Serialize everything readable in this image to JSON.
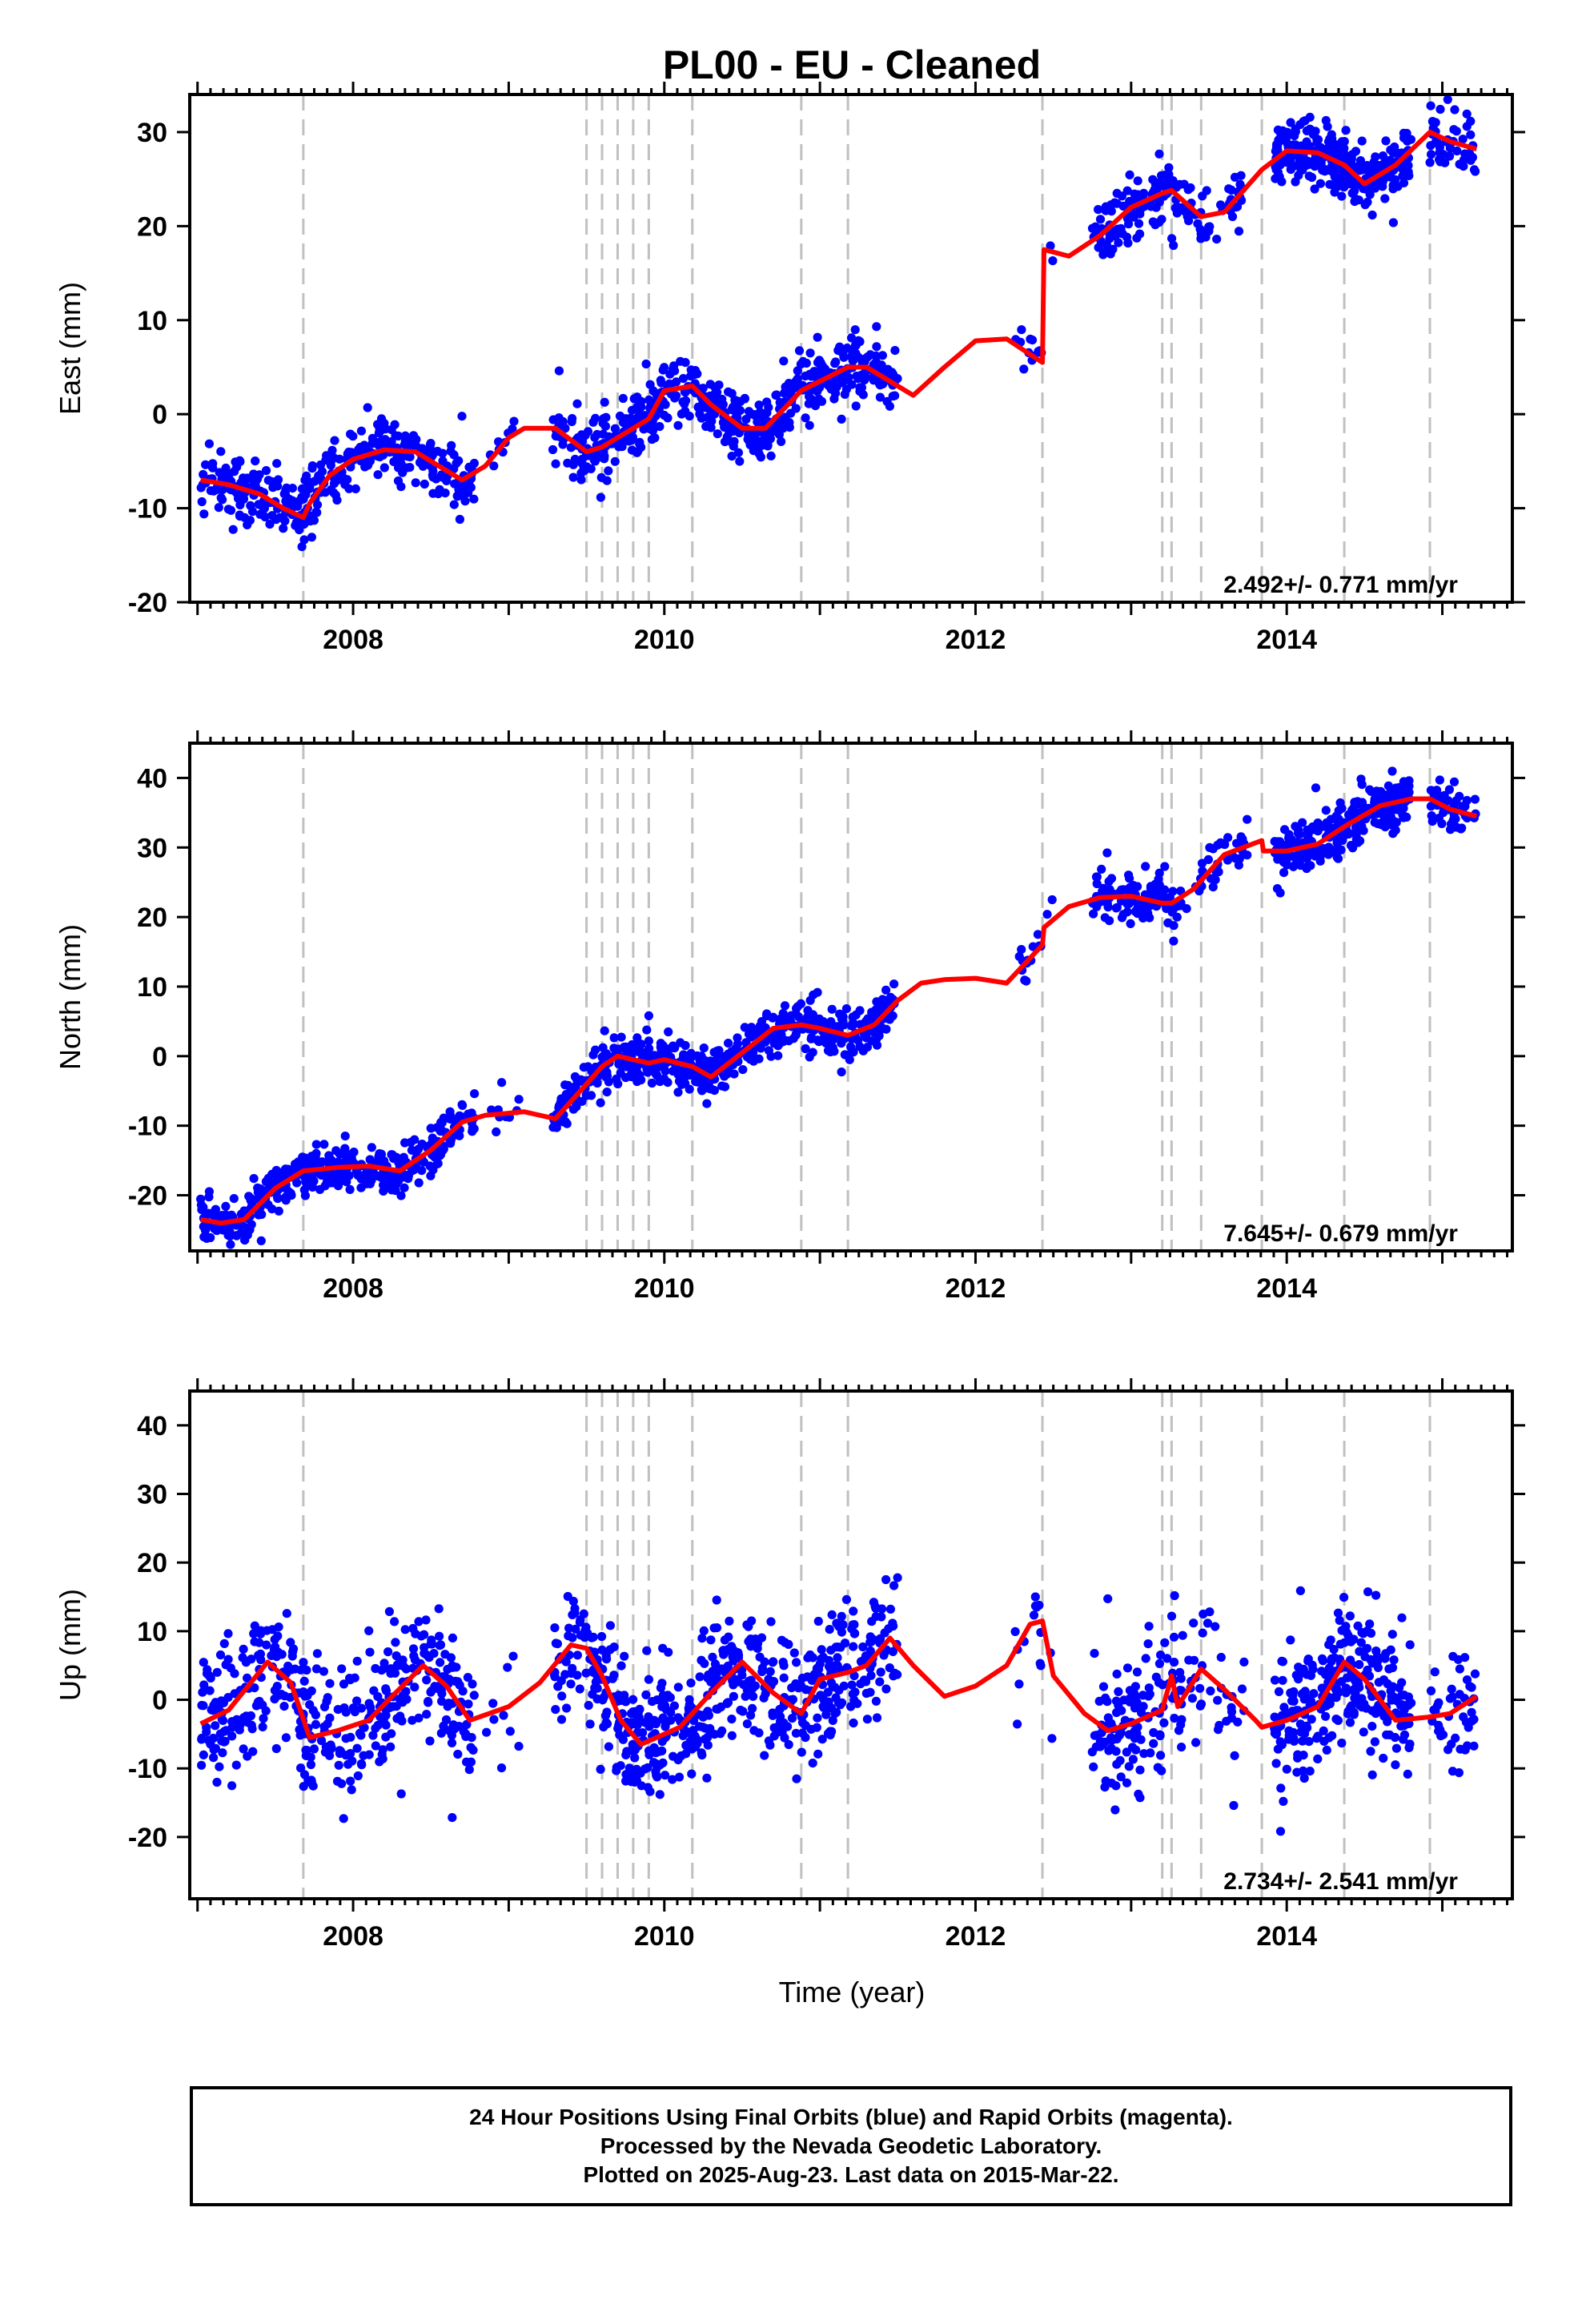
{
  "chart_data": [
    {
      "type": "scatter",
      "title": "PL00  - EU - Cleaned",
      "ylabel": "East (mm)",
      "xlabel": "",
      "xlim": [
        2006.95,
        2015.45
      ],
      "ylim": [
        -20,
        34
      ],
      "xticks": [
        2008,
        2010,
        2012,
        2014
      ],
      "yticks": [
        -20,
        -10,
        0,
        10,
        20,
        30
      ],
      "rate_text": "2.492+/- 0.771 mm/yr",
      "grid": false,
      "dashed_event_lines": [
        2007.68,
        2009.5,
        2009.6,
        2009.7,
        2009.8,
        2009.9,
        2010.18,
        2010.88,
        2011.18,
        2012.43,
        2013.2,
        2013.26,
        2013.45,
        2013.84,
        2014.37,
        2014.92
      ],
      "series": [
        {
          "color": "#0000ff",
          "style": "points",
          "segments": [
            [
              2007.02,
              2007.7,
              0.6
            ],
            [
              2007.68,
              2008.78,
              0.6
            ],
            [
              2008.85,
              2009.1,
              0.1
            ],
            [
              2009.28,
              2009.5,
              0.5
            ],
            [
              2009.5,
              2011.5,
              0.7
            ],
            [
              2012.25,
              2012.43,
              0.2
            ],
            [
              2012.44,
              2012.5,
              0.05
            ],
            [
              2012.75,
              2013.25,
              0.6
            ],
            [
              2013.25,
              2013.75,
              0.3
            ],
            [
              2013.92,
              2014.8,
              0.9
            ],
            [
              2014.92,
              2015.22,
              0.4
            ]
          ],
          "trend": [
            [
              2007.02,
              -7.0
            ],
            [
              2007.2,
              -7.5
            ],
            [
              2007.4,
              -8.5
            ],
            [
              2007.55,
              -10.0
            ],
            [
              2007.68,
              -11.0
            ],
            [
              2007.72,
              -9.5
            ],
            [
              2007.85,
              -6.5
            ],
            [
              2008.0,
              -4.8
            ],
            [
              2008.2,
              -3.8
            ],
            [
              2008.4,
              -4.0
            ],
            [
              2008.55,
              -5.5
            ],
            [
              2008.7,
              -7.0
            ],
            [
              2008.85,
              -5.5
            ],
            [
              2009.0,
              -2.5
            ],
            [
              2009.1,
              -1.5
            ],
            [
              2009.3,
              -1.5
            ],
            [
              2009.5,
              -4.0
            ],
            [
              2009.6,
              -3.5
            ],
            [
              2009.75,
              -2.0
            ],
            [
              2009.9,
              -0.5
            ],
            [
              2010.0,
              2.5
            ],
            [
              2010.18,
              3.0
            ],
            [
              2010.3,
              1.0
            ],
            [
              2010.5,
              -1.5
            ],
            [
              2010.65,
              -1.5
            ],
            [
              2010.88,
              2.5
            ],
            [
              2011.0,
              3.5
            ],
            [
              2011.18,
              5.0
            ],
            [
              2011.3,
              5.0
            ],
            [
              2011.5,
              3.0
            ],
            [
              2011.6,
              2.0
            ],
            [
              2011.8,
              5.0
            ],
            [
              2012.0,
              7.8
            ],
            [
              2012.2,
              8.0
            ],
            [
              2012.43,
              5.5
            ],
            [
              2012.44,
              17.5
            ],
            [
              2012.6,
              16.8
            ],
            [
              2012.8,
              19.0
            ],
            [
              2013.0,
              22.0
            ],
            [
              2013.2,
              23.5
            ],
            [
              2013.26,
              23.8
            ],
            [
              2013.45,
              21.0
            ],
            [
              2013.6,
              21.5
            ],
            [
              2013.84,
              26.0
            ],
            [
              2014.0,
              28.0
            ],
            [
              2014.2,
              27.8
            ],
            [
              2014.37,
              26.5
            ],
            [
              2014.5,
              24.5
            ],
            [
              2014.7,
              26.5
            ],
            [
              2014.92,
              30.0
            ],
            [
              2015.05,
              29.0
            ],
            [
              2015.22,
              28.2
            ]
          ]
        }
      ]
    },
    {
      "type": "scatter",
      "ylabel": "North (mm)",
      "xlabel": "",
      "xlim": [
        2006.95,
        2015.45
      ],
      "ylim": [
        -28,
        45
      ],
      "xticks": [
        2008,
        2010,
        2012,
        2014
      ],
      "yticks": [
        -20,
        -10,
        0,
        10,
        20,
        30,
        40
      ],
      "rate_text": "7.645+/- 0.679 mm/yr",
      "grid": false,
      "dashed_event_lines": [
        2007.68,
        2009.5,
        2009.6,
        2009.7,
        2009.8,
        2009.9,
        2010.18,
        2010.88,
        2011.18,
        2012.43,
        2013.2,
        2013.26,
        2013.45,
        2013.84,
        2014.37,
        2014.92
      ],
      "series": [
        {
          "color": "#0000ff",
          "style": "points",
          "segments": [
            [
              2007.02,
              2007.7,
              0.6
            ],
            [
              2007.68,
              2008.78,
              0.6
            ],
            [
              2008.85,
              2009.1,
              0.1
            ],
            [
              2009.28,
              2009.5,
              0.5
            ],
            [
              2009.5,
              2011.5,
              0.7
            ],
            [
              2012.25,
              2012.43,
              0.2
            ],
            [
              2012.44,
              2012.5,
              0.05
            ],
            [
              2012.75,
              2013.25,
              0.6
            ],
            [
              2013.25,
              2013.75,
              0.3
            ],
            [
              2013.92,
              2014.8,
              0.9
            ],
            [
              2014.92,
              2015.22,
              0.4
            ]
          ],
          "trend": [
            [
              2007.02,
              -23.5
            ],
            [
              2007.15,
              -24.0
            ],
            [
              2007.3,
              -23.5
            ],
            [
              2007.5,
              -19.0
            ],
            [
              2007.68,
              -16.5
            ],
            [
              2007.9,
              -16.0
            ],
            [
              2008.1,
              -15.8
            ],
            [
              2008.3,
              -16.5
            ],
            [
              2008.5,
              -13.5
            ],
            [
              2008.7,
              -9.5
            ],
            [
              2008.85,
              -8.5
            ],
            [
              2009.1,
              -8.0
            ],
            [
              2009.3,
              -9.0
            ],
            [
              2009.5,
              -4.0
            ],
            [
              2009.6,
              -1.5
            ],
            [
              2009.7,
              0.0
            ],
            [
              2009.8,
              -0.5
            ],
            [
              2009.9,
              -1.0
            ],
            [
              2010.0,
              -0.5
            ],
            [
              2010.18,
              -1.5
            ],
            [
              2010.3,
              -3.0
            ],
            [
              2010.5,
              0.5
            ],
            [
              2010.7,
              4.0
            ],
            [
              2010.88,
              4.5
            ],
            [
              2011.0,
              4.0
            ],
            [
              2011.18,
              3.0
            ],
            [
              2011.35,
              4.5
            ],
            [
              2011.5,
              8.0
            ],
            [
              2011.65,
              10.5
            ],
            [
              2011.8,
              11.0
            ],
            [
              2012.0,
              11.2
            ],
            [
              2012.2,
              10.5
            ],
            [
              2012.43,
              16.0
            ],
            [
              2012.44,
              18.5
            ],
            [
              2012.6,
              21.5
            ],
            [
              2012.8,
              22.8
            ],
            [
              2013.0,
              23.0
            ],
            [
              2013.2,
              22.0
            ],
            [
              2013.26,
              22.0
            ],
            [
              2013.4,
              24.0
            ],
            [
              2013.6,
              29.0
            ],
            [
              2013.84,
              31.0
            ],
            [
              2013.85,
              29.5
            ],
            [
              2014.0,
              29.5
            ],
            [
              2014.2,
              30.5
            ],
            [
              2014.37,
              33.0
            ],
            [
              2014.6,
              36.0
            ],
            [
              2014.8,
              37.0
            ],
            [
              2014.92,
              37.0
            ],
            [
              2015.05,
              35.5
            ],
            [
              2015.22,
              34.5
            ]
          ]
        }
      ]
    },
    {
      "type": "scatter",
      "ylabel": "Up (mm)",
      "xlabel": "Time (year)",
      "xlim": [
        2006.95,
        2015.45
      ],
      "ylim": [
        -29,
        45
      ],
      "xticks": [
        2008,
        2010,
        2012,
        2014
      ],
      "yticks": [
        -20,
        -10,
        0,
        10,
        20,
        30,
        40
      ],
      "rate_text": "2.734+/- 2.541 mm/yr",
      "grid": false,
      "dashed_event_lines": [
        2007.68,
        2009.5,
        2009.6,
        2009.7,
        2009.8,
        2009.9,
        2010.18,
        2010.88,
        2011.18,
        2012.43,
        2013.2,
        2013.26,
        2013.45,
        2013.84,
        2014.37,
        2014.92
      ],
      "series": [
        {
          "color": "#0000ff",
          "style": "points",
          "segments": [
            [
              2007.02,
              2007.7,
              0.6
            ],
            [
              2007.68,
              2008.78,
              0.6
            ],
            [
              2008.85,
              2009.1,
              0.1
            ],
            [
              2009.28,
              2009.5,
              0.5
            ],
            [
              2009.5,
              2011.5,
              0.7
            ],
            [
              2012.25,
              2012.43,
              0.2
            ],
            [
              2012.44,
              2012.5,
              0.05
            ],
            [
              2012.75,
              2013.25,
              0.6
            ],
            [
              2013.25,
              2013.75,
              0.3
            ],
            [
              2013.92,
              2014.8,
              0.9
            ],
            [
              2014.92,
              2015.22,
              0.4
            ]
          ],
          "trend": [
            [
              2007.02,
              -3.5
            ],
            [
              2007.2,
              -1.5
            ],
            [
              2007.45,
              5.5
            ],
            [
              2007.6,
              2.5
            ],
            [
              2007.72,
              -5.5
            ],
            [
              2007.9,
              -4.5
            ],
            [
              2008.1,
              -3.0
            ],
            [
              2008.25,
              0.5
            ],
            [
              2008.45,
              5.0
            ],
            [
              2008.6,
              2.0
            ],
            [
              2008.75,
              -3.0
            ],
            [
              2009.0,
              -1.0
            ],
            [
              2009.2,
              2.5
            ],
            [
              2009.4,
              8.0
            ],
            [
              2009.5,
              7.5
            ],
            [
              2009.6,
              3.5
            ],
            [
              2009.72,
              -3.0
            ],
            [
              2009.85,
              -6.5
            ],
            [
              2009.95,
              -5.5
            ],
            [
              2010.1,
              -4.0
            ],
            [
              2010.3,
              1.0
            ],
            [
              2010.5,
              5.5
            ],
            [
              2010.7,
              1.0
            ],
            [
              2010.88,
              -2.0
            ],
            [
              2011.0,
              3.0
            ],
            [
              2011.18,
              4.0
            ],
            [
              2011.3,
              5.0
            ],
            [
              2011.45,
              9.0
            ],
            [
              2011.6,
              5.0
            ],
            [
              2011.8,
              0.5
            ],
            [
              2012.0,
              2.0
            ],
            [
              2012.2,
              5.0
            ],
            [
              2012.35,
              11.0
            ],
            [
              2012.43,
              11.5
            ],
            [
              2012.5,
              3.5
            ],
            [
              2012.7,
              -2.0
            ],
            [
              2012.85,
              -4.5
            ],
            [
              2013.0,
              -3.5
            ],
            [
              2013.2,
              -1.5
            ],
            [
              2013.26,
              3.5
            ],
            [
              2013.3,
              -1.0
            ],
            [
              2013.45,
              4.5
            ],
            [
              2013.6,
              1.5
            ],
            [
              2013.8,
              -3.0
            ],
            [
              2013.84,
              -4.0
            ],
            [
              2014.0,
              -3.0
            ],
            [
              2014.2,
              -1.0
            ],
            [
              2014.37,
              5.5
            ],
            [
              2014.5,
              3.0
            ],
            [
              2014.7,
              -3.0
            ],
            [
              2014.92,
              -2.5
            ],
            [
              2015.05,
              -2.0
            ],
            [
              2015.22,
              0.5
            ]
          ]
        }
      ]
    }
  ],
  "footer": {
    "line1": "24 Hour Positions Using Final Orbits (blue) and Rapid Orbits (magenta).",
    "line2": "Processed by the Nevada Geodetic Laboratory.",
    "line3": "Plotted on 2025-Aug-23. Last data on 2015-Mar-22."
  }
}
